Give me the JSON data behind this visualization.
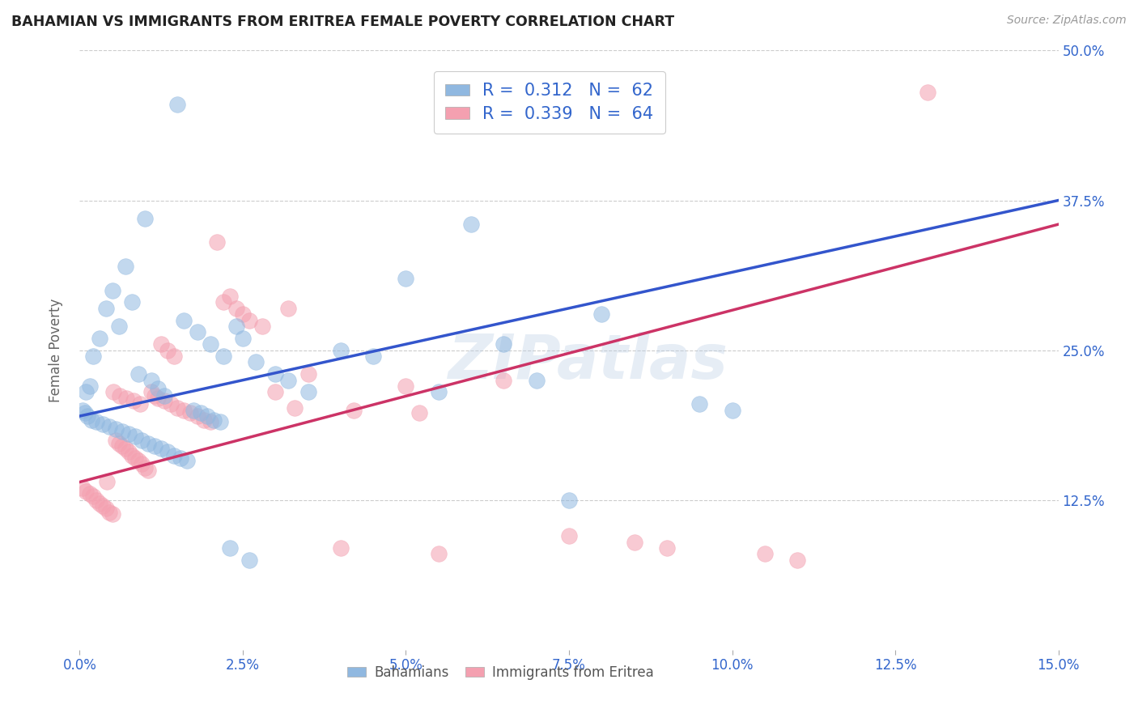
{
  "title": "BAHAMIAN VS IMMIGRANTS FROM ERITREA FEMALE POVERTY CORRELATION CHART",
  "source": "Source: ZipAtlas.com",
  "ylabel": "Female Poverty",
  "watermark": "ZIPatlas",
  "xlim": [
    0.0,
    15.0
  ],
  "ylim": [
    0.0,
    50.0
  ],
  "yticks": [
    12.5,
    25.0,
    37.5,
    50.0
  ],
  "xticks": [
    0.0,
    2.5,
    5.0,
    7.5,
    10.0,
    12.5,
    15.0
  ],
  "blue_R": "0.312",
  "blue_N": "62",
  "pink_R": "0.339",
  "pink_N": "64",
  "blue_color": "#90B8E0",
  "pink_color": "#F4A0B0",
  "blue_line_color": "#3355CC",
  "pink_line_color": "#CC3366",
  "legend_label_blue": "Bahamians",
  "legend_label_pink": "Immigrants from Eritrea",
  "blue_line_x0": 0.0,
  "blue_line_y0": 19.5,
  "blue_line_x1": 15.0,
  "blue_line_y1": 37.5,
  "pink_line_x0": 0.0,
  "pink_line_y0": 14.0,
  "pink_line_x1": 15.0,
  "pink_line_y1": 35.5,
  "blue_scatter_x": [
    1.5,
    0.5,
    1.0,
    0.8,
    0.7,
    0.4,
    0.6,
    0.3,
    0.2,
    0.15,
    0.1,
    0.9,
    1.1,
    1.2,
    1.3,
    1.6,
    1.8,
    2.0,
    2.2,
    2.4,
    2.5,
    2.7,
    3.0,
    3.2,
    3.5,
    4.0,
    4.5,
    5.0,
    5.5,
    6.0,
    6.5,
    7.0,
    7.5,
    8.0,
    9.5,
    10.0,
    0.05,
    0.08,
    0.12,
    0.18,
    0.25,
    0.35,
    0.45,
    0.55,
    0.65,
    0.75,
    0.85,
    0.95,
    1.05,
    1.15,
    1.25,
    1.35,
    1.45,
    1.55,
    1.65,
    1.75,
    1.85,
    1.95,
    2.05,
    2.15,
    2.3,
    2.6
  ],
  "blue_scatter_y": [
    45.5,
    30.0,
    36.0,
    29.0,
    32.0,
    28.5,
    27.0,
    26.0,
    24.5,
    22.0,
    21.5,
    23.0,
    22.5,
    21.8,
    21.2,
    27.5,
    26.5,
    25.5,
    24.5,
    27.0,
    26.0,
    24.0,
    23.0,
    22.5,
    21.5,
    25.0,
    24.5,
    31.0,
    21.5,
    35.5,
    25.5,
    22.5,
    12.5,
    28.0,
    20.5,
    20.0,
    20.0,
    19.8,
    19.5,
    19.2,
    19.0,
    18.8,
    18.6,
    18.4,
    18.2,
    18.0,
    17.8,
    17.5,
    17.2,
    17.0,
    16.8,
    16.5,
    16.2,
    16.0,
    15.8,
    20.0,
    19.8,
    19.5,
    19.2,
    19.0,
    8.5,
    7.5
  ],
  "pink_scatter_x": [
    0.05,
    0.1,
    0.15,
    0.2,
    0.25,
    0.3,
    0.35,
    0.4,
    0.45,
    0.5,
    0.55,
    0.6,
    0.65,
    0.7,
    0.75,
    0.8,
    0.85,
    0.9,
    0.95,
    1.0,
    1.05,
    1.1,
    1.15,
    1.2,
    1.3,
    1.4,
    1.5,
    1.6,
    1.7,
    1.8,
    1.9,
    2.0,
    2.1,
    2.2,
    2.3,
    2.4,
    2.5,
    2.6,
    2.8,
    3.0,
    3.2,
    3.5,
    4.0,
    5.0,
    5.5,
    6.5,
    7.5,
    8.5,
    9.0,
    10.5,
    11.0,
    1.25,
    1.35,
    1.45,
    0.42,
    0.52,
    0.62,
    0.72,
    0.82,
    0.92,
    3.3,
    4.2,
    5.2,
    13.0
  ],
  "pink_scatter_y": [
    13.5,
    13.2,
    13.0,
    12.8,
    12.5,
    12.2,
    12.0,
    11.8,
    11.5,
    11.3,
    17.5,
    17.2,
    17.0,
    16.8,
    16.5,
    16.2,
    16.0,
    15.8,
    15.5,
    15.2,
    15.0,
    21.5,
    21.2,
    21.0,
    20.8,
    20.5,
    20.2,
    20.0,
    19.8,
    19.5,
    19.2,
    19.0,
    34.0,
    29.0,
    29.5,
    28.5,
    28.0,
    27.5,
    27.0,
    21.5,
    28.5,
    23.0,
    8.5,
    22.0,
    8.0,
    22.5,
    9.5,
    9.0,
    8.5,
    8.0,
    7.5,
    25.5,
    25.0,
    24.5,
    14.0,
    21.5,
    21.2,
    21.0,
    20.8,
    20.5,
    20.2,
    20.0,
    19.8,
    46.5
  ]
}
